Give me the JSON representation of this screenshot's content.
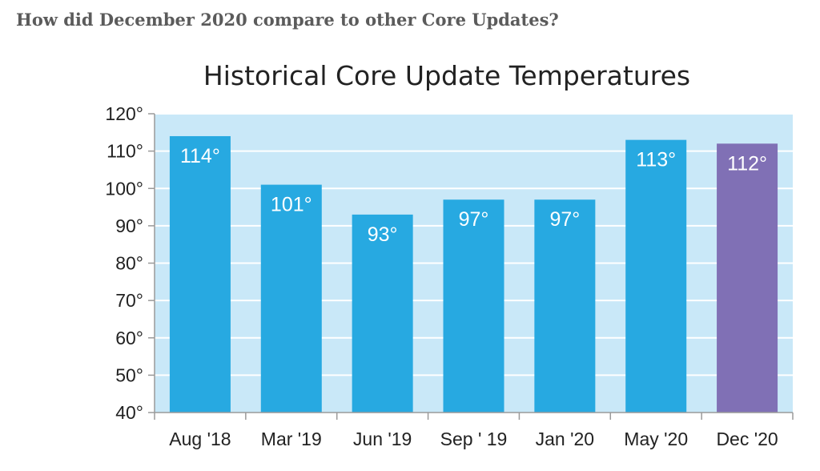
{
  "question": "How did December 2020 compare to other Core Updates?",
  "chart_data": {
    "type": "bar",
    "title": "Historical Core Update Temperatures",
    "categories": [
      "Aug '18",
      "Mar '19",
      "Jun '19",
      "Sep ' 19",
      "Jan '20",
      "May '20",
      "Dec '20"
    ],
    "values": [
      114,
      101,
      93,
      97,
      97,
      113,
      112
    ],
    "value_labels": [
      "114°",
      "101°",
      "93°",
      "97°",
      "97°",
      "113°",
      "112°"
    ],
    "y_ticks": [
      40,
      50,
      60,
      70,
      80,
      90,
      100,
      110,
      120
    ],
    "y_tick_labels": [
      "40°",
      "50°",
      "60°",
      "70°",
      "80°",
      "90°",
      "100°",
      "110°",
      "120°"
    ],
    "ylim": [
      40,
      120
    ],
    "xlabel": "",
    "ylabel": "",
    "grid": true,
    "colors": {
      "plot_background": "#c9e8f8",
      "bar": "#27a9e1",
      "highlight_bar": "#8070b5",
      "gridline": "#ffffff",
      "axis": "#9a9a9a"
    },
    "highlight_index": 6
  }
}
